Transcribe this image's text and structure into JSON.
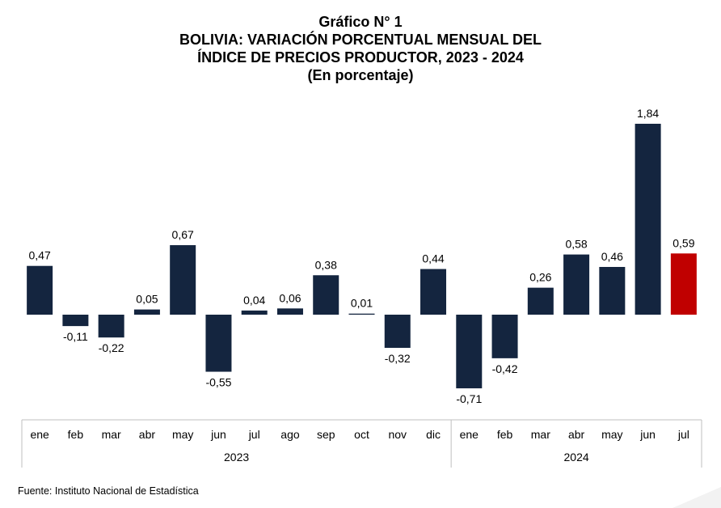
{
  "title": {
    "line1": "Gráfico N° 1",
    "line2": "BOLIVIA: VARIACIÓN PORCENTUAL MENSUAL DEL",
    "line3": "ÍNDICE DE PRECIOS PRODUCTOR, 2023 - 2024",
    "line4": "(En porcentaje)"
  },
  "source": "Fuente: Instituto Nacional de Estadística",
  "colors": {
    "bar": "#14253f",
    "highlight": "#c00000",
    "axis": "#bfbfbf"
  },
  "chart_data": {
    "type": "bar",
    "categories": [
      "ene",
      "feb",
      "mar",
      "abr",
      "may",
      "jun",
      "jul",
      "ago",
      "sep",
      "oct",
      "nov",
      "dic",
      "ene",
      "feb",
      "mar",
      "abr",
      "may",
      "jun",
      "jul"
    ],
    "values": [
      0.47,
      -0.11,
      -0.22,
      0.05,
      0.67,
      -0.55,
      0.04,
      0.06,
      0.38,
      0.01,
      -0.32,
      0.44,
      -0.71,
      -0.42,
      0.26,
      0.58,
      0.46,
      1.84,
      0.59
    ],
    "value_labels": [
      "0,47",
      "-0,11",
      "-0,22",
      "0,05",
      "0,67",
      "-0,55",
      "0,04",
      "0,06",
      "0,38",
      "0,01",
      "-0,32",
      "0,44",
      "-0,71",
      "-0,42",
      "0,26",
      "0,58",
      "0,46",
      "1,84",
      "0,59"
    ],
    "groups": [
      {
        "label": "2023",
        "count": 12
      },
      {
        "label": "2024",
        "count": 7
      }
    ],
    "highlight_index": 18,
    "ylim": [
      -0.85,
      2.0
    ],
    "grid": false,
    "legend": "none"
  }
}
